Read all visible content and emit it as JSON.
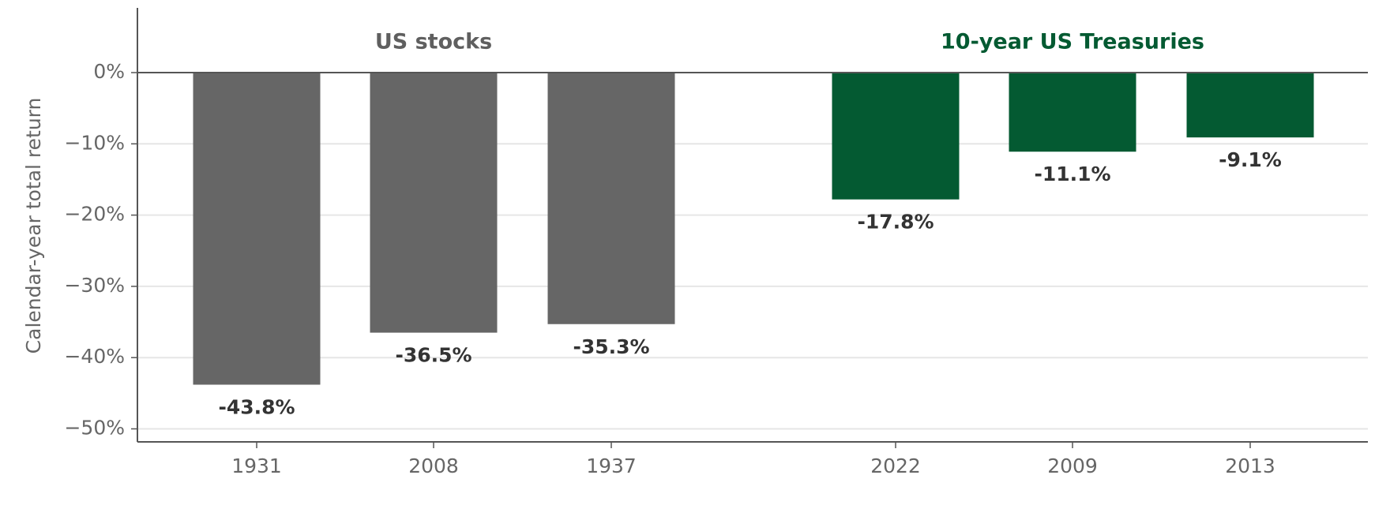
{
  "chart_data": {
    "type": "bar",
    "ylabel": "Calendar-year total return",
    "ylim": [
      -52,
      9
    ],
    "yticks": [
      0,
      -10,
      -20,
      -30,
      -40,
      -50
    ],
    "ytick_labels": [
      "0%",
      "−10%",
      "−20%",
      "−30%",
      "−40%",
      "−50%"
    ],
    "grid": "horizontal",
    "groups": [
      {
        "name": "US stocks",
        "color": "#666666",
        "label_color": "#5f5f5f",
        "categories": [
          "1931",
          "2008",
          "1937"
        ],
        "values": [
          -43.8,
          -36.5,
          -35.3
        ],
        "value_labels": [
          "-43.8%",
          "-36.5%",
          "-35.3%"
        ]
      },
      {
        "name": "10-year US Treasuries",
        "color": "#045a32",
        "label_color": "#045a32",
        "categories": [
          "2022",
          "2009",
          "2013"
        ],
        "values": [
          -17.8,
          -11.1,
          -9.1
        ],
        "value_labels": [
          "-17.8%",
          "-11.1%",
          "-9.1%"
        ]
      }
    ]
  }
}
